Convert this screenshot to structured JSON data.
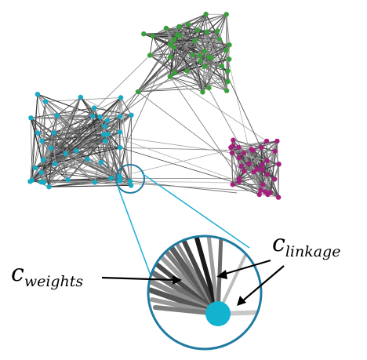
{
  "labels": {
    "weights_main": "c",
    "weights_sub": "weights",
    "linkage_main": "c",
    "linkage_sub": "linkage"
  },
  "colors": {
    "green_cluster": "#3a9e3a",
    "cyan_cluster": "#17aac4",
    "magenta_cluster": "#a3217c",
    "zoom_ring": "#1f7aa0",
    "zoom_line": "#2ab0d6",
    "focus_node": "#12b3cf"
  },
  "clusters": [
    {
      "name": "green",
      "color": "#3a9e3a",
      "node_count": 40
    },
    {
      "name": "cyan",
      "color": "#17aac4",
      "node_count": 42
    },
    {
      "name": "magenta",
      "color": "#a3217c",
      "node_count": 34
    }
  ]
}
